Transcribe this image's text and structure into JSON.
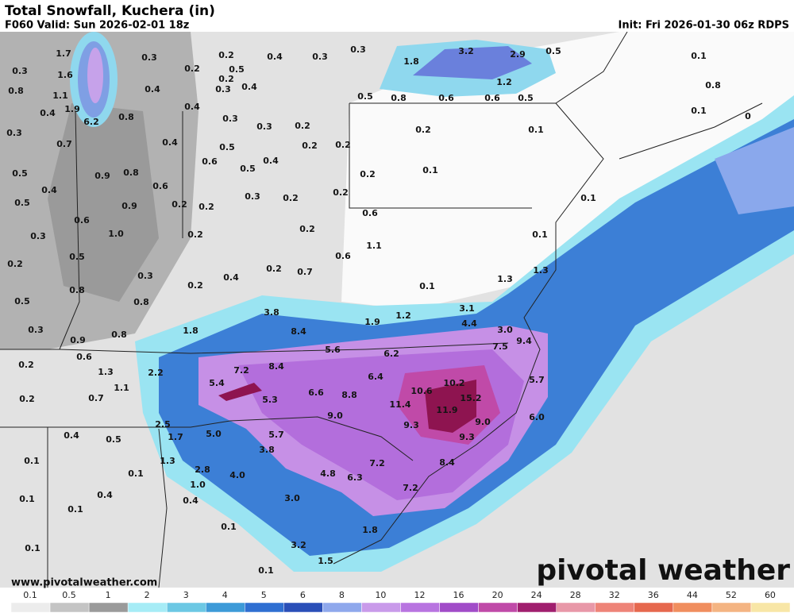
{
  "header": {
    "title": "Total Snowfall, Kuchera (in)",
    "valid": "F060 Valid: Sun 2026-02-01 18z",
    "init": "Init: Fri 2026-01-30 06z RDPS"
  },
  "footer": {
    "url": "www.pivotalweather.com",
    "logo": "pivotal weather"
  },
  "legend": {
    "labels": [
      "0.1",
      "0.5",
      "1",
      "2",
      "3",
      "4",
      "5",
      "6",
      "8",
      "10",
      "12",
      "16",
      "20",
      "24",
      "28",
      "32",
      "36",
      "44",
      "52",
      "60"
    ],
    "colors": [
      "#ececec",
      "#c4c4c4",
      "#9a9a9a",
      "#a6ecf6",
      "#6cc8e4",
      "#3d9ad8",
      "#2f6fd2",
      "#2a4fb8",
      "#8fa8ec",
      "#c99aea",
      "#b874e0",
      "#a14cc8",
      "#c04aa8",
      "#a01e6e",
      "#e898a8",
      "#ee8478",
      "#e6684e",
      "#f08e5e",
      "#f4b482",
      "#f8e6a6"
    ]
  },
  "map": {
    "labels": [
      "1.7",
      "0.3",
      "0.2",
      "0.4",
      "0.3",
      "0.3",
      "1.8",
      "3.2",
      "2.9",
      "0.5",
      "0.1",
      "0.3",
      "1.6",
      "0.2",
      "0.5",
      "0.2",
      "0.8",
      "1.1",
      "0.4",
      "0.3",
      "0.4",
      "1.2",
      "0.8",
      "0.4",
      "1.9",
      "0.8",
      "0.4",
      "0.5",
      "0.8",
      "0.6",
      "0.6",
      "0.5",
      "0.1",
      "0",
      "6.2",
      "0.3",
      "0.3",
      "0.2",
      "0.2",
      "0.1",
      "0.3",
      "0.7",
      "0.4",
      "0.5",
      "0.2",
      "0.2",
      "0.5",
      "0.9",
      "0.8",
      "0.6",
      "0.4",
      "0.5",
      "0.2",
      "0.1",
      "0.4",
      "0.6",
      "0.3",
      "0.2",
      "0.2",
      "0.1",
      "0.5",
      "0.9",
      "0.2",
      "0.2",
      "0.6",
      "0.6",
      "1.0",
      "0.2",
      "0.2",
      "0.1",
      "0.3",
      "0.5",
      "1.1",
      "0.6",
      "0.2",
      "0.7",
      "1.3",
      "1.3",
      "0.2",
      "0.3",
      "0.2",
      "0.4",
      "0.1",
      "0.5",
      "0.8",
      "0.8",
      "3.8",
      "3.1",
      "1.2",
      "1.9",
      "4.4",
      "8.4",
      "1.8",
      "3.0",
      "0.3",
      "0.9",
      "0.8",
      "9.4",
      "7.5",
      "5.6",
      "6.2",
      "0.2",
      "0.6",
      "1.3",
      "2.2",
      "7.2",
      "8.4",
      "6.4",
      "5.7",
      "5.4",
      "1.1",
      "10.2",
      "10.6",
      "15.2",
      "6.6",
      "8.8",
      "0.2",
      "0.7",
      "5.3",
      "11.4",
      "11.9",
      "6.0",
      "9.0",
      "9.0",
      "2.5",
      "9.3",
      "0.4",
      "0.5",
      "1.7",
      "5.0",
      "5.7",
      "9.3",
      "3.8",
      "0.1",
      "1.3",
      "2.8",
      "7.2",
      "8.4",
      "0.1",
      "4.0",
      "4.8",
      "6.3",
      "1.0",
      "7.2",
      "0.1",
      "0.4",
      "0.4",
      "3.0",
      "0.1",
      "0.1",
      "1.8",
      "3.2",
      "0.1",
      "1.5",
      "0.1"
    ]
  }
}
